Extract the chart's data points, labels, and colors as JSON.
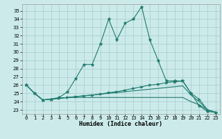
{
  "title": "",
  "xlabel": "Humidex (Indice chaleur)",
  "xlim": [
    -0.5,
    23.5
  ],
  "ylim": [
    22.5,
    35.8
  ],
  "yticks": [
    23,
    24,
    25,
    26,
    27,
    28,
    29,
    30,
    31,
    32,
    33,
    34,
    35
  ],
  "xticks": [
    0,
    1,
    2,
    3,
    4,
    5,
    6,
    7,
    8,
    9,
    10,
    11,
    12,
    13,
    14,
    15,
    16,
    17,
    18,
    19,
    20,
    21,
    22,
    23
  ],
  "bg_color": "#cceaea",
  "grid_color": "#aad0d0",
  "line_color": "#1e7b6e",
  "lines": [
    {
      "x": [
        0,
        1,
        2,
        3,
        4,
        5,
        6,
        7,
        8,
        9,
        10,
        11,
        12,
        13,
        14,
        15,
        16,
        17,
        18,
        19,
        20,
        21,
        22,
        23
      ],
      "y": [
        26.0,
        25.0,
        24.2,
        24.3,
        24.5,
        25.2,
        26.8,
        28.5,
        28.5,
        31.0,
        34.0,
        31.5,
        33.5,
        34.0,
        35.5,
        31.5,
        29.0,
        26.5,
        26.5,
        26.5,
        25.0,
        23.5,
        22.8,
        22.7
      ],
      "marker": "*",
      "markersize": 3.5
    },
    {
      "x": [
        0,
        1,
        2,
        3,
        4,
        5,
        6,
        7,
        8,
        9,
        10,
        11,
        12,
        13,
        14,
        15,
        16,
        17,
        18,
        19,
        20,
        21,
        22,
        23
      ],
      "y": [
        26.0,
        25.0,
        24.2,
        24.3,
        24.4,
        24.5,
        24.6,
        24.7,
        24.8,
        24.9,
        25.1,
        25.2,
        25.4,
        25.6,
        25.8,
        26.0,
        26.1,
        26.3,
        26.4,
        26.5,
        25.0,
        24.3,
        23.0,
        22.7
      ],
      "marker": ">",
      "markersize": 2.5
    },
    {
      "x": [
        0,
        1,
        2,
        3,
        4,
        5,
        6,
        7,
        8,
        9,
        10,
        11,
        12,
        13,
        14,
        15,
        16,
        17,
        18,
        19,
        20,
        21,
        22,
        23
      ],
      "y": [
        26.0,
        25.0,
        24.2,
        24.3,
        24.4,
        24.5,
        24.6,
        24.7,
        24.8,
        24.9,
        25.0,
        25.1,
        25.2,
        25.3,
        25.4,
        25.5,
        25.6,
        25.7,
        25.8,
        25.9,
        24.8,
        24.0,
        23.0,
        22.7
      ],
      "marker": null,
      "markersize": 0
    },
    {
      "x": [
        0,
        1,
        2,
        3,
        4,
        5,
        6,
        7,
        8,
        9,
        10,
        11,
        12,
        13,
        14,
        15,
        16,
        17,
        18,
        19,
        20,
        21,
        22,
        23
      ],
      "y": [
        26.0,
        25.0,
        24.2,
        24.3,
        24.4,
        24.5,
        24.5,
        24.5,
        24.5,
        24.5,
        24.5,
        24.5,
        24.5,
        24.5,
        24.5,
        24.5,
        24.5,
        24.5,
        24.5,
        24.5,
        24.0,
        23.6,
        23.0,
        22.7
      ],
      "marker": null,
      "markersize": 0
    }
  ],
  "tick_fontsize": 5.0,
  "label_fontsize": 6.0,
  "label_fontweight": "bold"
}
